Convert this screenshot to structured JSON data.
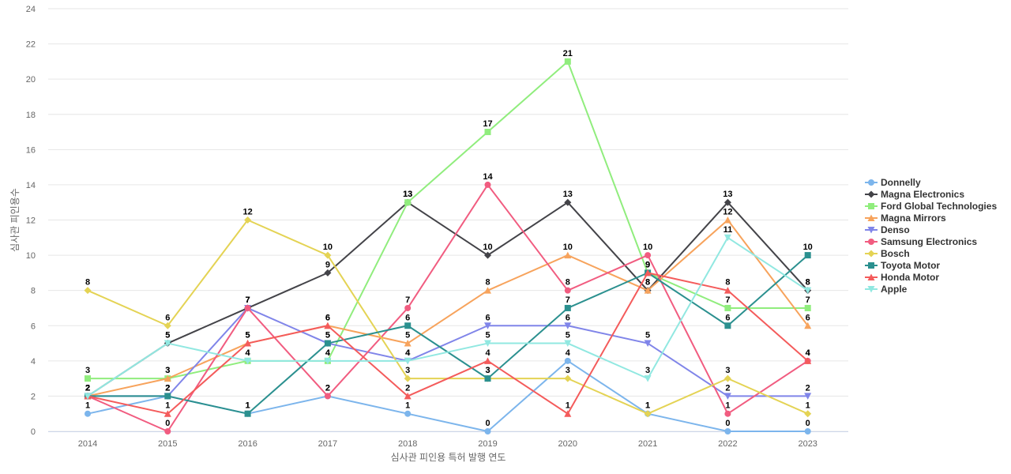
{
  "chart_data": {
    "type": "line",
    "title": "",
    "xlabel": "심사관 피인용 특허 발행 연도",
    "ylabel": "심사관 피인용수",
    "categories": [
      "2014",
      "2015",
      "2016",
      "2017",
      "2018",
      "2019",
      "2020",
      "2021",
      "2022",
      "2023"
    ],
    "ylim": [
      0,
      24
    ],
    "yticks": [
      0,
      2,
      4,
      6,
      8,
      10,
      12,
      14,
      16,
      18,
      20,
      22,
      24
    ],
    "grid": true,
    "legend_position": "right",
    "series": [
      {
        "name": "Donnelly",
        "color": "#7cb5ec",
        "marker": "circle",
        "values": [
          1,
          2,
          1,
          2,
          1,
          0,
          4,
          1,
          0,
          0
        ]
      },
      {
        "name": "Magna Electronics",
        "color": "#434348",
        "marker": "diamond",
        "values": [
          2,
          5,
          7,
          9,
          13,
          10,
          13,
          8,
          13,
          8
        ]
      },
      {
        "name": "Ford Global Technologies",
        "color": "#90ed7d",
        "marker": "square",
        "values": [
          3,
          3,
          4,
          4,
          13,
          17,
          21,
          9,
          7,
          7
        ]
      },
      {
        "name": "Magna Mirrors",
        "color": "#f7a35c",
        "marker": "triangle",
        "values": [
          2,
          3,
          5,
          6,
          5,
          8,
          10,
          8,
          12,
          6
        ]
      },
      {
        "name": "Denso",
        "color": "#8085e9",
        "marker": "triangle-down",
        "values": [
          2,
          2,
          7,
          5,
          4,
          6,
          6,
          5,
          2,
          2
        ]
      },
      {
        "name": "Samsung Electronics",
        "color": "#f15c80",
        "marker": "circle",
        "values": [
          2,
          0,
          7,
          2,
          7,
          14,
          8,
          10,
          1,
          4
        ]
      },
      {
        "name": "Bosch",
        "color": "#e4d354",
        "marker": "diamond",
        "values": [
          8,
          6,
          12,
          10,
          3,
          3,
          3,
          1,
          3,
          1
        ]
      },
      {
        "name": "Toyota Motor",
        "color": "#2b908f",
        "marker": "square",
        "values": [
          2,
          2,
          1,
          5,
          6,
          3,
          7,
          9,
          6,
          10
        ]
      },
      {
        "name": "Honda Motor",
        "color": "#f45b5b",
        "marker": "triangle",
        "values": [
          2,
          1,
          5,
          6,
          2,
          4,
          1,
          9,
          8,
          4
        ]
      },
      {
        "name": "Apple",
        "color": "#91e8e1",
        "marker": "triangle-down",
        "values": [
          2,
          5,
          4,
          4,
          4,
          5,
          5,
          3,
          11,
          8
        ]
      }
    ]
  }
}
